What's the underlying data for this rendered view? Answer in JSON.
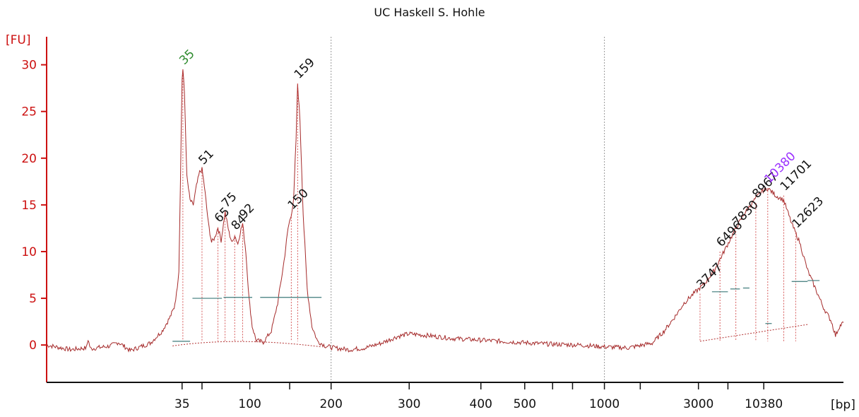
{
  "chart_data": {
    "type": "line",
    "title": "UC Haskell S. Hohle",
    "ylabel": "[FU]",
    "xlabel": "[bp]",
    "ylim": [
      -4,
      33
    ],
    "y_ticks": [
      0,
      5,
      10,
      15,
      20,
      25,
      30
    ],
    "x_ticks": [
      {
        "label": "35",
        "pos": 0.17
      },
      {
        "label": "",
        "pos": 0.195
      },
      {
        "label": "100",
        "pos": 0.255
      },
      {
        "label": "",
        "pos": 0.305
      },
      {
        "label": "200",
        "pos": 0.357
      },
      {
        "label": "300",
        "pos": 0.455
      },
      {
        "label": "400",
        "pos": 0.545
      },
      {
        "label": "500",
        "pos": 0.6
      },
      {
        "label": "",
        "pos": 0.635
      },
      {
        "label": "",
        "pos": 0.66
      },
      {
        "label": "1000",
        "pos": 0.7
      },
      {
        "label": "",
        "pos": 0.745
      },
      {
        "label": "3000",
        "pos": 0.818
      },
      {
        "label": "",
        "pos": 0.855
      },
      {
        "label": "10380",
        "pos": 0.9
      }
    ],
    "vertical_markers": [
      0.357,
      0.7
    ],
    "peaks": [
      {
        "label": "35",
        "x": 0.171,
        "y": 29.5,
        "color": "#2e8b2e"
      },
      {
        "label": "51",
        "x": 0.195,
        "y": 18.8,
        "color": "#111111"
      },
      {
        "label": "65",
        "x": 0.215,
        "y": 12.6,
        "color": "#111111"
      },
      {
        "label": "75",
        "x": 0.224,
        "y": 14.2,
        "color": "#111111"
      },
      {
        "label": "84",
        "x": 0.236,
        "y": 11.8,
        "color": "#111111"
      },
      {
        "label": "92",
        "x": 0.246,
        "y": 13.0,
        "color": "#111111"
      },
      {
        "label": "150",
        "x": 0.307,
        "y": 14.0,
        "color": "#111111"
      },
      {
        "label": "159",
        "x": 0.315,
        "y": 28.0,
        "color": "#111111"
      },
      {
        "label": "3747",
        "x": 0.82,
        "y": 5.5,
        "color": "#111111"
      },
      {
        "label": "6496",
        "x": 0.845,
        "y": 10.0,
        "color": "#111111"
      },
      {
        "label": "7830",
        "x": 0.865,
        "y": 12.2,
        "color": "#111111"
      },
      {
        "label": "8967",
        "x": 0.89,
        "y": 15.2,
        "color": "#111111"
      },
      {
        "label": "10380",
        "x": 0.905,
        "y": 16.8,
        "color": "#9b30ff"
      },
      {
        "label": "11701",
        "x": 0.925,
        "y": 16.0,
        "color": "#111111"
      },
      {
        "label": "12623",
        "x": 0.94,
        "y": 12.0,
        "color": "#111111"
      }
    ],
    "trace": [
      [
        0.0,
        0.0
      ],
      [
        0.03,
        -0.5
      ],
      [
        0.05,
        -0.3
      ],
      [
        0.052,
        0.6
      ],
      [
        0.055,
        -0.4
      ],
      [
        0.08,
        -0.1
      ],
      [
        0.09,
        0.3
      ],
      [
        0.105,
        -0.6
      ],
      [
        0.13,
        0.2
      ],
      [
        0.145,
        1.5
      ],
      [
        0.155,
        3.0
      ],
      [
        0.16,
        4.0
      ],
      [
        0.163,
        5.5
      ],
      [
        0.166,
        8.0
      ],
      [
        0.168,
        18.0
      ],
      [
        0.17,
        28.5
      ],
      [
        0.171,
        29.5
      ],
      [
        0.173,
        27.0
      ],
      [
        0.176,
        18.0
      ],
      [
        0.18,
        15.5
      ],
      [
        0.184,
        15.0
      ],
      [
        0.188,
        17.0
      ],
      [
        0.192,
        18.5
      ],
      [
        0.195,
        18.8
      ],
      [
        0.198,
        17.0
      ],
      [
        0.203,
        13.0
      ],
      [
        0.207,
        11.0
      ],
      [
        0.211,
        11.5
      ],
      [
        0.215,
        12.6
      ],
      [
        0.219,
        11.2
      ],
      [
        0.224,
        14.2
      ],
      [
        0.229,
        12.0
      ],
      [
        0.233,
        10.9
      ],
      [
        0.236,
        11.8
      ],
      [
        0.24,
        10.8
      ],
      [
        0.243,
        12.1
      ],
      [
        0.246,
        13.0
      ],
      [
        0.25,
        10.0
      ],
      [
        0.254,
        5.0
      ],
      [
        0.258,
        2.0
      ],
      [
        0.263,
        0.5
      ],
      [
        0.272,
        0.3
      ],
      [
        0.282,
        1.5
      ],
      [
        0.29,
        4.5
      ],
      [
        0.298,
        9.0
      ],
      [
        0.303,
        12.5
      ],
      [
        0.307,
        14.0
      ],
      [
        0.31,
        15.5
      ],
      [
        0.313,
        22.0
      ],
      [
        0.315,
        28.0
      ],
      [
        0.318,
        24.0
      ],
      [
        0.322,
        14.0
      ],
      [
        0.327,
        6.0
      ],
      [
        0.333,
        2.0
      ],
      [
        0.34,
        0.4
      ],
      [
        0.35,
        -0.1
      ],
      [
        0.36,
        -0.3
      ],
      [
        0.38,
        -0.5
      ],
      [
        0.4,
        -0.3
      ],
      [
        0.42,
        0.2
      ],
      [
        0.44,
        0.9
      ],
      [
        0.455,
        1.2
      ],
      [
        0.48,
        1.0
      ],
      [
        0.51,
        0.7
      ],
      [
        0.55,
        0.5
      ],
      [
        0.59,
        0.3
      ],
      [
        0.63,
        0.1
      ],
      [
        0.67,
        0.0
      ],
      [
        0.7,
        -0.2
      ],
      [
        0.73,
        -0.3
      ],
      [
        0.76,
        0.2
      ],
      [
        0.775,
        1.5
      ],
      [
        0.79,
        3.2
      ],
      [
        0.8,
        4.5
      ],
      [
        0.812,
        5.5
      ],
      [
        0.825,
        6.5
      ],
      [
        0.838,
        8.0
      ],
      [
        0.85,
        10.0
      ],
      [
        0.862,
        12.0
      ],
      [
        0.875,
        14.0
      ],
      [
        0.888,
        15.5
      ],
      [
        0.898,
        16.5
      ],
      [
        0.905,
        16.8
      ],
      [
        0.915,
        16.0
      ],
      [
        0.925,
        15.5
      ],
      [
        0.935,
        13.0
      ],
      [
        0.945,
        11.0
      ],
      [
        0.955,
        8.0
      ],
      [
        0.965,
        6.0
      ],
      [
        0.975,
        4.0
      ],
      [
        0.985,
        2.5
      ],
      [
        0.99,
        1.0
      ],
      [
        0.995,
        2.0
      ],
      [
        1.0,
        2.4
      ]
    ]
  }
}
